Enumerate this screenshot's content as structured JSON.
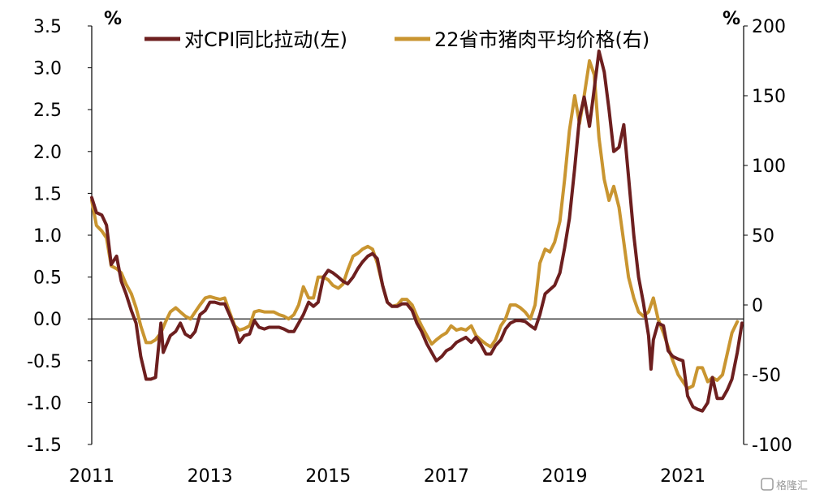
{
  "chart_data": {
    "type": "line",
    "legend_position": "top",
    "grid": false,
    "y_left": {
      "unit": "%",
      "range": [
        -1.5,
        3.5
      ],
      "ticks": [
        3.5,
        3.0,
        2.5,
        2.0,
        1.5,
        1.0,
        0.5,
        0.0,
        -0.5,
        -1.0,
        -1.5
      ],
      "tick_labels": [
        "3.5",
        "3.0",
        "2.5",
        "2.0",
        "1.5",
        "1.0",
        "0.5",
        "0.0",
        "-0.5",
        "-1.0",
        "-1.5"
      ]
    },
    "y_right": {
      "unit": "%",
      "range": [
        -100,
        200
      ],
      "ticks": [
        200,
        150,
        100,
        50,
        0,
        -50,
        -100
      ],
      "tick_labels": [
        "200",
        "150",
        "100",
        "50",
        "0",
        "-50",
        "-100"
      ]
    },
    "x_axis": {
      "range": [
        2011.0,
        2022.0
      ],
      "ticks": [
        2011,
        2013,
        2015,
        2017,
        2019,
        2021
      ],
      "tick_labels": [
        "2011",
        "2013",
        "2015",
        "2017",
        "2019",
        "2021"
      ]
    },
    "series": [
      {
        "name": "对CPI同比拉动(左)",
        "axis": "left",
        "color": "#6d1f1f",
        "points": [
          [
            2011.0,
            1.45
          ],
          [
            2011.08,
            1.27
          ],
          [
            2011.17,
            1.24
          ],
          [
            2011.25,
            1.12
          ],
          [
            2011.33,
            0.65
          ],
          [
            2011.42,
            0.75
          ],
          [
            2011.5,
            0.45
          ],
          [
            2011.58,
            0.3
          ],
          [
            2011.67,
            0.1
          ],
          [
            2011.75,
            -0.05
          ],
          [
            2011.83,
            -0.45
          ],
          [
            2011.92,
            -0.72
          ],
          [
            2012.0,
            -0.72
          ],
          [
            2012.08,
            -0.7
          ],
          [
            2012.17,
            -0.05
          ],
          [
            2012.21,
            -0.4
          ],
          [
            2012.33,
            -0.2
          ],
          [
            2012.42,
            -0.15
          ],
          [
            2012.5,
            -0.05
          ],
          [
            2012.58,
            -0.18
          ],
          [
            2012.67,
            -0.22
          ],
          [
            2012.75,
            -0.15
          ],
          [
            2012.83,
            0.05
          ],
          [
            2012.92,
            0.1
          ],
          [
            2013.0,
            0.2
          ],
          [
            2013.08,
            0.2
          ],
          [
            2013.17,
            0.18
          ],
          [
            2013.25,
            0.18
          ],
          [
            2013.33,
            0.05
          ],
          [
            2013.42,
            -0.1
          ],
          [
            2013.5,
            -0.28
          ],
          [
            2013.58,
            -0.2
          ],
          [
            2013.67,
            -0.18
          ],
          [
            2013.75,
            -0.02
          ],
          [
            2013.83,
            -0.1
          ],
          [
            2013.92,
            -0.12
          ],
          [
            2014.0,
            -0.1
          ],
          [
            2014.08,
            -0.1
          ],
          [
            2014.17,
            -0.1
          ],
          [
            2014.25,
            -0.12
          ],
          [
            2014.33,
            -0.15
          ],
          [
            2014.42,
            -0.15
          ],
          [
            2014.5,
            -0.05
          ],
          [
            2014.58,
            0.05
          ],
          [
            2014.67,
            0.2
          ],
          [
            2014.75,
            0.15
          ],
          [
            2014.83,
            0.2
          ],
          [
            2014.92,
            0.5
          ],
          [
            2015.0,
            0.58
          ],
          [
            2015.08,
            0.55
          ],
          [
            2015.17,
            0.5
          ],
          [
            2015.25,
            0.45
          ],
          [
            2015.33,
            0.42
          ],
          [
            2015.42,
            0.5
          ],
          [
            2015.5,
            0.6
          ],
          [
            2015.58,
            0.68
          ],
          [
            2015.67,
            0.75
          ],
          [
            2015.75,
            0.78
          ],
          [
            2015.83,
            0.72
          ],
          [
            2015.92,
            0.4
          ],
          [
            2016.0,
            0.2
          ],
          [
            2016.08,
            0.15
          ],
          [
            2016.17,
            0.15
          ],
          [
            2016.25,
            0.18
          ],
          [
            2016.33,
            0.18
          ],
          [
            2016.42,
            0.1
          ],
          [
            2016.5,
            -0.05
          ],
          [
            2016.58,
            -0.15
          ],
          [
            2016.67,
            -0.3
          ],
          [
            2016.75,
            -0.4
          ],
          [
            2016.83,
            -0.5
          ],
          [
            2016.92,
            -0.45
          ],
          [
            2017.0,
            -0.38
          ],
          [
            2017.08,
            -0.35
          ],
          [
            2017.17,
            -0.28
          ],
          [
            2017.25,
            -0.25
          ],
          [
            2017.33,
            -0.22
          ],
          [
            2017.42,
            -0.28
          ],
          [
            2017.5,
            -0.22
          ],
          [
            2017.58,
            -0.3
          ],
          [
            2017.67,
            -0.42
          ],
          [
            2017.75,
            -0.42
          ],
          [
            2017.83,
            -0.32
          ],
          [
            2017.92,
            -0.25
          ],
          [
            2018.0,
            -0.12
          ],
          [
            2018.08,
            -0.05
          ],
          [
            2018.17,
            -0.02
          ],
          [
            2018.25,
            -0.02
          ],
          [
            2018.33,
            -0.03
          ],
          [
            2018.42,
            -0.08
          ],
          [
            2018.5,
            -0.12
          ],
          [
            2018.58,
            0.05
          ],
          [
            2018.67,
            0.3
          ],
          [
            2018.75,
            0.35
          ],
          [
            2018.83,
            0.4
          ],
          [
            2018.92,
            0.55
          ],
          [
            2019.0,
            0.85
          ],
          [
            2019.08,
            1.2
          ],
          [
            2019.17,
            1.8
          ],
          [
            2019.25,
            2.4
          ],
          [
            2019.33,
            2.65
          ],
          [
            2019.42,
            2.3
          ],
          [
            2019.5,
            2.75
          ],
          [
            2019.58,
            3.2
          ],
          [
            2019.67,
            2.95
          ],
          [
            2019.75,
            2.5
          ],
          [
            2019.83,
            2.0
          ],
          [
            2019.92,
            2.05
          ],
          [
            2020.0,
            2.32
          ],
          [
            2020.08,
            1.7
          ],
          [
            2020.17,
            1.0
          ],
          [
            2020.25,
            0.5
          ],
          [
            2020.33,
            0.2
          ],
          [
            2020.42,
            -0.2
          ],
          [
            2020.46,
            -0.6
          ],
          [
            2020.5,
            -0.25
          ],
          [
            2020.58,
            -0.05
          ],
          [
            2020.67,
            -0.08
          ],
          [
            2020.75,
            -0.38
          ],
          [
            2020.83,
            -0.45
          ],
          [
            2020.92,
            -0.48
          ],
          [
            2021.0,
            -0.5
          ],
          [
            2021.08,
            -0.92
          ],
          [
            2021.17,
            -1.05
          ],
          [
            2021.25,
            -1.08
          ],
          [
            2021.33,
            -1.1
          ],
          [
            2021.42,
            -1.0
          ],
          [
            2021.5,
            -0.7
          ],
          [
            2021.58,
            -0.95
          ],
          [
            2021.67,
            -0.95
          ],
          [
            2021.75,
            -0.85
          ],
          [
            2021.83,
            -0.72
          ],
          [
            2021.92,
            -0.4
          ],
          [
            2022.0,
            -0.05
          ]
        ]
      },
      {
        "name": "22省市猪肉平均价格(右)",
        "axis": "right",
        "color": "#c99530",
        "points": [
          [
            2011.0,
            75
          ],
          [
            2011.08,
            57
          ],
          [
            2011.17,
            53
          ],
          [
            2011.25,
            48
          ],
          [
            2011.33,
            28
          ],
          [
            2011.42,
            26
          ],
          [
            2011.5,
            23
          ],
          [
            2011.58,
            15
          ],
          [
            2011.67,
            8
          ],
          [
            2011.75,
            -2
          ],
          [
            2011.83,
            -15
          ],
          [
            2011.92,
            -27
          ],
          [
            2012.0,
            -27
          ],
          [
            2012.08,
            -25
          ],
          [
            2012.17,
            -20
          ],
          [
            2012.25,
            -12
          ],
          [
            2012.33,
            -5
          ],
          [
            2012.42,
            -2
          ],
          [
            2012.5,
            -5
          ],
          [
            2012.58,
            -8
          ],
          [
            2012.67,
            -10
          ],
          [
            2012.75,
            -5
          ],
          [
            2012.83,
            0
          ],
          [
            2012.92,
            5
          ],
          [
            2013.0,
            6
          ],
          [
            2013.08,
            5
          ],
          [
            2013.17,
            4
          ],
          [
            2013.25,
            5
          ],
          [
            2013.33,
            -5
          ],
          [
            2013.42,
            -15
          ],
          [
            2013.5,
            -18
          ],
          [
            2013.58,
            -17
          ],
          [
            2013.67,
            -15
          ],
          [
            2013.75,
            -5
          ],
          [
            2013.83,
            -4
          ],
          [
            2013.92,
            -5
          ],
          [
            2014.0,
            -5
          ],
          [
            2014.08,
            -5
          ],
          [
            2014.17,
            -7
          ],
          [
            2014.25,
            -8
          ],
          [
            2014.33,
            -10
          ],
          [
            2014.42,
            -7
          ],
          [
            2014.5,
            0
          ],
          [
            2014.58,
            13
          ],
          [
            2014.67,
            5
          ],
          [
            2014.75,
            5
          ],
          [
            2014.83,
            20
          ],
          [
            2014.92,
            20
          ],
          [
            2015.0,
            18
          ],
          [
            2015.08,
            14
          ],
          [
            2015.17,
            12
          ],
          [
            2015.25,
            15
          ],
          [
            2015.33,
            25
          ],
          [
            2015.42,
            35
          ],
          [
            2015.5,
            37
          ],
          [
            2015.58,
            40
          ],
          [
            2015.67,
            42
          ],
          [
            2015.75,
            40
          ],
          [
            2015.83,
            30
          ],
          [
            2015.92,
            14
          ],
          [
            2016.0,
            2
          ],
          [
            2016.08,
            -1
          ],
          [
            2016.17,
            0
          ],
          [
            2016.25,
            4
          ],
          [
            2016.33,
            4
          ],
          [
            2016.42,
            0
          ],
          [
            2016.5,
            -8
          ],
          [
            2016.58,
            -15
          ],
          [
            2016.67,
            -22
          ],
          [
            2016.75,
            -28
          ],
          [
            2016.83,
            -25
          ],
          [
            2016.92,
            -22
          ],
          [
            2017.0,
            -20
          ],
          [
            2017.08,
            -15
          ],
          [
            2017.17,
            -18
          ],
          [
            2017.25,
            -17
          ],
          [
            2017.33,
            -18
          ],
          [
            2017.42,
            -15
          ],
          [
            2017.5,
            -22
          ],
          [
            2017.58,
            -25
          ],
          [
            2017.67,
            -28
          ],
          [
            2017.75,
            -30
          ],
          [
            2017.83,
            -25
          ],
          [
            2017.92,
            -15
          ],
          [
            2018.0,
            -10
          ],
          [
            2018.08,
            0
          ],
          [
            2018.17,
            0
          ],
          [
            2018.25,
            -2
          ],
          [
            2018.33,
            -5
          ],
          [
            2018.42,
            -10
          ],
          [
            2018.5,
            0
          ],
          [
            2018.58,
            30
          ],
          [
            2018.67,
            40
          ],
          [
            2018.75,
            38
          ],
          [
            2018.83,
            45
          ],
          [
            2018.92,
            60
          ],
          [
            2019.0,
            90
          ],
          [
            2019.08,
            125
          ],
          [
            2019.17,
            150
          ],
          [
            2019.25,
            130
          ],
          [
            2019.33,
            150
          ],
          [
            2019.42,
            175
          ],
          [
            2019.5,
            165
          ],
          [
            2019.58,
            120
          ],
          [
            2019.67,
            90
          ],
          [
            2019.75,
            75
          ],
          [
            2019.83,
            85
          ],
          [
            2019.92,
            70
          ],
          [
            2020.0,
            45
          ],
          [
            2020.08,
            20
          ],
          [
            2020.17,
            5
          ],
          [
            2020.25,
            -5
          ],
          [
            2020.33,
            -8
          ],
          [
            2020.42,
            -5
          ],
          [
            2020.5,
            5
          ],
          [
            2020.58,
            -10
          ],
          [
            2020.67,
            -20
          ],
          [
            2020.75,
            -30
          ],
          [
            2020.83,
            -40
          ],
          [
            2020.92,
            -50
          ],
          [
            2021.0,
            -55
          ],
          [
            2021.08,
            -60
          ],
          [
            2021.17,
            -58
          ],
          [
            2021.25,
            -45
          ],
          [
            2021.33,
            -45
          ],
          [
            2021.42,
            -55
          ],
          [
            2021.5,
            -52
          ],
          [
            2021.58,
            -54
          ],
          [
            2021.67,
            -50
          ],
          [
            2021.75,
            -35
          ],
          [
            2021.83,
            -20
          ],
          [
            2021.92,
            -12
          ]
        ]
      }
    ]
  },
  "watermark": "格隆汇"
}
